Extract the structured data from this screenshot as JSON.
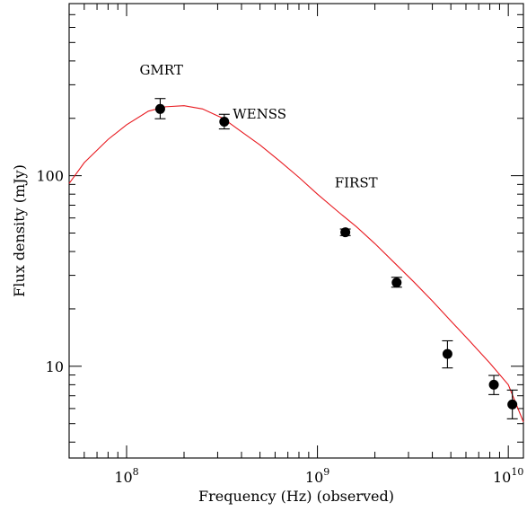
{
  "chart_data": {
    "type": "scatter",
    "x_scale": "log",
    "y_scale": "log",
    "xlabel": "Frequency (Hz) (observed)",
    "ylabel": "Flux density (mJy)",
    "xlim": [
      50000000.0,
      12000000000.0
    ],
    "ylim": [
      3.3,
      800
    ],
    "x_ticks": [
      {
        "value": 100000000.0,
        "base": "10",
        "exp": "8"
      },
      {
        "value": 1000000000.0,
        "base": "10",
        "exp": "9"
      },
      {
        "value": 10000000000.0,
        "base": "10",
        "exp": "10"
      }
    ],
    "y_ticks": [
      {
        "value": 10,
        "label": "10"
      },
      {
        "value": 100,
        "label": "100"
      }
    ],
    "grid": false,
    "points": [
      {
        "x": 150000000.0,
        "y": 224,
        "err_low": 199,
        "err_high": 254
      },
      {
        "x": 325000000.0,
        "y": 192,
        "err_low": 176,
        "err_high": 210
      },
      {
        "x": 1400000000.0,
        "y": 50.5,
        "err_low": 48.5,
        "err_high": 52.5
      },
      {
        "x": 2600000000.0,
        "y": 27.5,
        "err_low": 26.0,
        "err_high": 29.3
      },
      {
        "x": 4800000000.0,
        "y": 11.6,
        "err_low": 9.8,
        "err_high": 13.6
      },
      {
        "x": 8400000000.0,
        "y": 8.0,
        "err_low": 7.1,
        "err_high": 8.95
      },
      {
        "x": 10500000000.0,
        "y": 6.3,
        "err_low": 5.3,
        "err_high": 7.5
      }
    ],
    "fit": {
      "color": "#e8191f",
      "x": [
        50000000.0,
        60000000.0,
        80000000.0,
        100000000.0,
        130000000.0,
        160000000.0,
        200000000.0,
        250000000.0,
        320000000.0,
        400000000.0,
        500000000.0,
        630000000.0,
        800000000.0,
        1000000000.0,
        1300000000.0,
        1600000000.0,
        2000000000.0,
        2600000000.0,
        3200000000.0,
        4000000000.0,
        5000000000.0,
        6300000000.0,
        8000000000.0,
        10000000000.0,
        12000000000.0
      ],
      "y": [
        91,
        117,
        155,
        185,
        218,
        230,
        233,
        224,
        200,
        170,
        145,
        120,
        98,
        80,
        64,
        54,
        44,
        34,
        27.7,
        22.0,
        17.3,
        13.5,
        10.4,
        8.0,
        5.1
      ]
    },
    "annotations": [
      {
        "text": "GMRT",
        "x": 152000000.0,
        "y": 340,
        "anchor": "middle"
      },
      {
        "text": "WENSS",
        "x": 360000000.0,
        "y": 200,
        "anchor": "start"
      },
      {
        "text": "FIRST",
        "x": 1230000000.0,
        "y": 87,
        "anchor": "start"
      }
    ]
  }
}
